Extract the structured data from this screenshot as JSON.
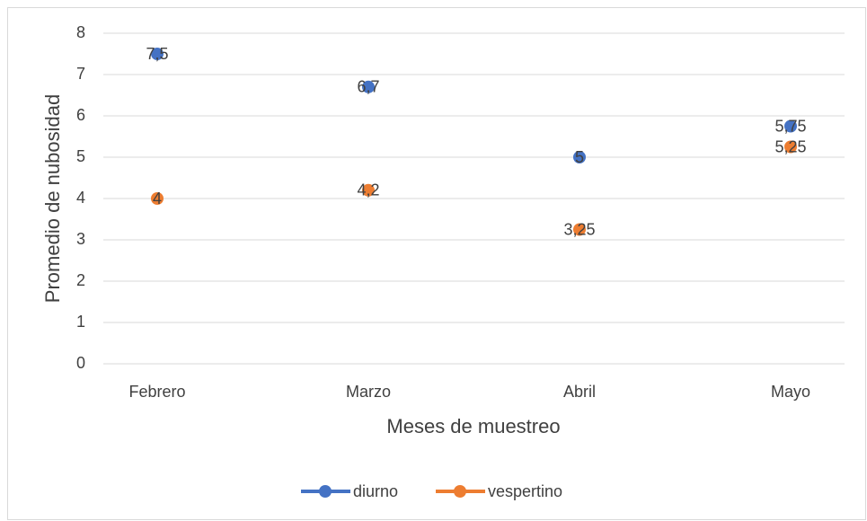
{
  "chart_data": {
    "type": "line",
    "markers_only": true,
    "x_label": "Meses de muestreo",
    "y_label": "Promedio de nubosidad",
    "categories": [
      "Febrero",
      "Marzo",
      "Abril",
      "Mayo"
    ],
    "series": [
      {
        "name": "diurno",
        "color": "#4472c4",
        "values": [
          7.5,
          6.7,
          5,
          5.75
        ],
        "value_labels": [
          "7,5",
          "6,7",
          "5",
          "5,75"
        ]
      },
      {
        "name": "vespertino",
        "color": "#ed7d31",
        "values": [
          4,
          4.2,
          3.25,
          5.25
        ],
        "value_labels": [
          "4",
          "4,2",
          "3,25",
          "5,25"
        ]
      }
    ],
    "ylim": [
      0,
      8
    ],
    "yticks": [
      0,
      1,
      2,
      3,
      4,
      5,
      6,
      7,
      8
    ],
    "grid": true,
    "legend": "bottom"
  }
}
